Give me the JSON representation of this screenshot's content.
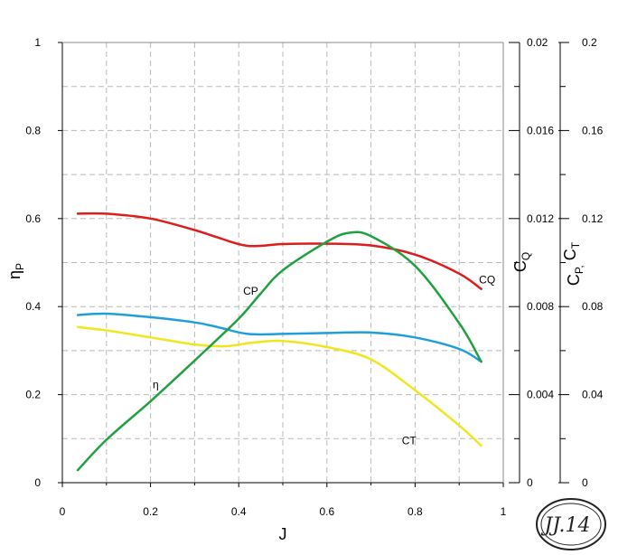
{
  "chart_data": {
    "type": "line",
    "x_axis": {
      "label": "J",
      "range": [
        0,
        1
      ],
      "ticks": [
        0,
        0.2,
        0.4,
        0.6,
        0.8,
        1
      ],
      "tick_labels": [
        "0",
        "0.2",
        "0.4",
        "0.6",
        "0.8",
        "1"
      ]
    },
    "y_left": {
      "label": "ηP",
      "range": [
        0,
        1
      ],
      "ticks": [
        0,
        0.2,
        0.4,
        0.6,
        0.8,
        1
      ],
      "tick_labels": [
        "0",
        "0.2",
        "0.4",
        "0.6",
        "0.8",
        "1"
      ]
    },
    "y_right_cq": {
      "label": "CQ",
      "range": [
        0,
        0.02
      ],
      "ticks": [
        0,
        0.004,
        0.008,
        0.012,
        0.016,
        0.02
      ],
      "tick_labels": [
        "0",
        "0.004",
        "0.008",
        "0.012",
        "0.016",
        "0.02"
      ]
    },
    "y_right_cpct": {
      "label": "CP, CT",
      "range": [
        0,
        0.2
      ],
      "ticks": [
        0,
        0.04,
        0.08,
        0.12,
        0.16,
        0.2
      ],
      "tick_labels": [
        "0",
        "0.04",
        "0.08",
        "0.12",
        "0.16",
        "0.2"
      ]
    },
    "grid": true,
    "series": [
      {
        "name": "CQ",
        "axis": "y_right_cq",
        "color": "#dd1c1c",
        "label_at": [
          0.945,
          0.00905
        ],
        "points": [
          [
            0.035,
            0.01222
          ],
          [
            0.1,
            0.01222
          ],
          [
            0.2,
            0.012
          ],
          [
            0.3,
            0.01148
          ],
          [
            0.35,
            0.01116
          ],
          [
            0.42,
            0.01076
          ],
          [
            0.5,
            0.01084
          ],
          [
            0.6,
            0.01086
          ],
          [
            0.7,
            0.01078
          ],
          [
            0.8,
            0.01036
          ],
          [
            0.9,
            0.0095
          ],
          [
            0.95,
            0.0088
          ]
        ]
      },
      {
        "name": "CP",
        "axis": "y_right_cpct",
        "color": "#22a040",
        "label_at": [
          0.41,
          0.0855
        ],
        "points": [
          [
            0.035,
            0.0057
          ],
          [
            0.1,
            0.0195
          ],
          [
            0.2,
            0.037
          ],
          [
            0.3,
            0.0555
          ],
          [
            0.4,
            0.0745
          ],
          [
            0.45,
            0.086
          ],
          [
            0.5,
            0.0965
          ],
          [
            0.6,
            0.1095
          ],
          [
            0.65,
            0.1135
          ],
          [
            0.7,
            0.112
          ],
          [
            0.8,
            0.0985
          ],
          [
            0.9,
            0.0725
          ],
          [
            0.95,
            0.055
          ]
        ]
      },
      {
        "name": "η",
        "axis": "y_left",
        "color": "#1e9fdc",
        "label_at": [
          0.205,
          0.215
        ],
        "points": [
          [
            0.035,
            0.381
          ],
          [
            0.1,
            0.384
          ],
          [
            0.2,
            0.376
          ],
          [
            0.3,
            0.364
          ],
          [
            0.35,
            0.354
          ],
          [
            0.42,
            0.338
          ],
          [
            0.5,
            0.338
          ],
          [
            0.6,
            0.34
          ],
          [
            0.7,
            0.341
          ],
          [
            0.8,
            0.33
          ],
          [
            0.9,
            0.304
          ],
          [
            0.95,
            0.275
          ]
        ]
      },
      {
        "name": "CT",
        "axis": "y_right_cpct",
        "color": "#f0e61e",
        "label_at": [
          0.77,
          0.0175
        ],
        "points": [
          [
            0.035,
            0.0707
          ],
          [
            0.1,
            0.0692
          ],
          [
            0.2,
            0.066
          ],
          [
            0.3,
            0.0628
          ],
          [
            0.37,
            0.062
          ],
          [
            0.43,
            0.0636
          ],
          [
            0.5,
            0.0644
          ],
          [
            0.6,
            0.0616
          ],
          [
            0.7,
            0.056
          ],
          [
            0.8,
            0.042
          ],
          [
            0.9,
            0.026
          ],
          [
            0.95,
            0.0168
          ]
        ]
      }
    ]
  },
  "watermark": {
    "text": "JJ.14"
  }
}
